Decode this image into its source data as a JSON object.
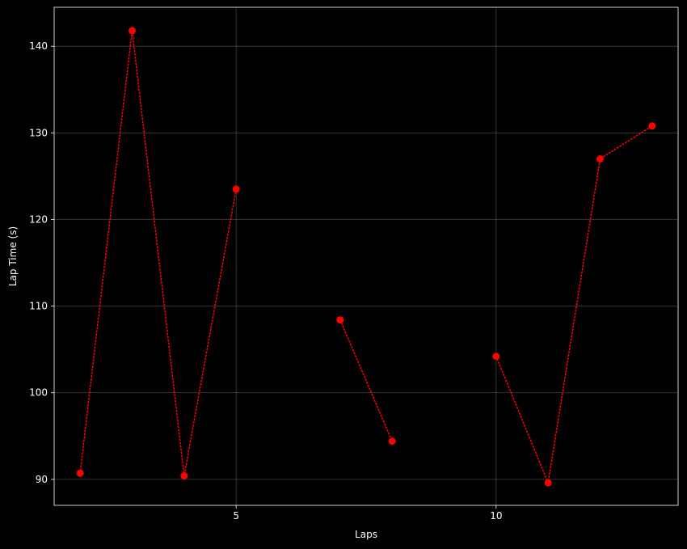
{
  "chart_data": {
    "type": "line",
    "xlabel": "Laps",
    "ylabel": "Lap Time (s)",
    "xlim": [
      1.5,
      13.5
    ],
    "ylim": [
      87,
      144.5
    ],
    "xticks": [
      5,
      10
    ],
    "yticks": [
      90,
      100,
      110,
      120,
      130,
      140
    ],
    "grid": true,
    "background": "#000000",
    "series": [
      {
        "color": "#ff0000",
        "line_style": "dotted",
        "marker": "circle",
        "x": [
          2,
          3,
          4,
          5,
          6,
          7,
          8,
          9,
          10,
          11,
          12,
          13
        ],
        "y": [
          90.7,
          141.8,
          90.4,
          123.5,
          null,
          108.4,
          94.4,
          null,
          104.2,
          89.6,
          127.0,
          130.8
        ]
      }
    ]
  }
}
